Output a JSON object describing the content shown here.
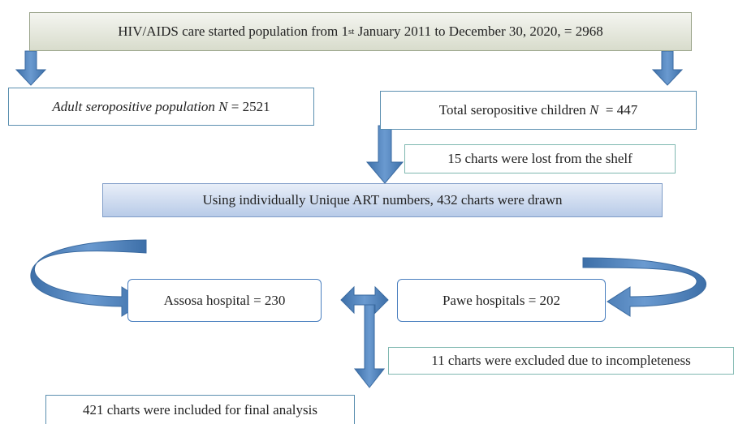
{
  "nodes": [
    {
      "parts": [
        "HIV/AIDS care started population from 1",
        "st",
        " January 2011 to December 30, 2020, = 2968"
      ]
    },
    {
      "parts": [
        "Adult seropositive population ",
        "N",
        " = 2521"
      ]
    },
    {
      "parts": [
        "Total seropositive children ",
        "N",
        "  = 447"
      ]
    },
    {
      "parts": [
        "15 charts were lost from the shelf"
      ]
    },
    {
      "parts": [
        "Using individually Unique ART numbers, 432 charts were drawn"
      ]
    },
    {
      "parts": [
        "Assosa hospital = 230"
      ]
    },
    {
      "parts": [
        "Pawe hospitals = 202"
      ]
    },
    {
      "parts": [
        "11 charts were excluded due to incompleteness"
      ]
    },
    {
      "parts": [
        "421 charts were included for final analysis"
      ]
    }
  ]
}
